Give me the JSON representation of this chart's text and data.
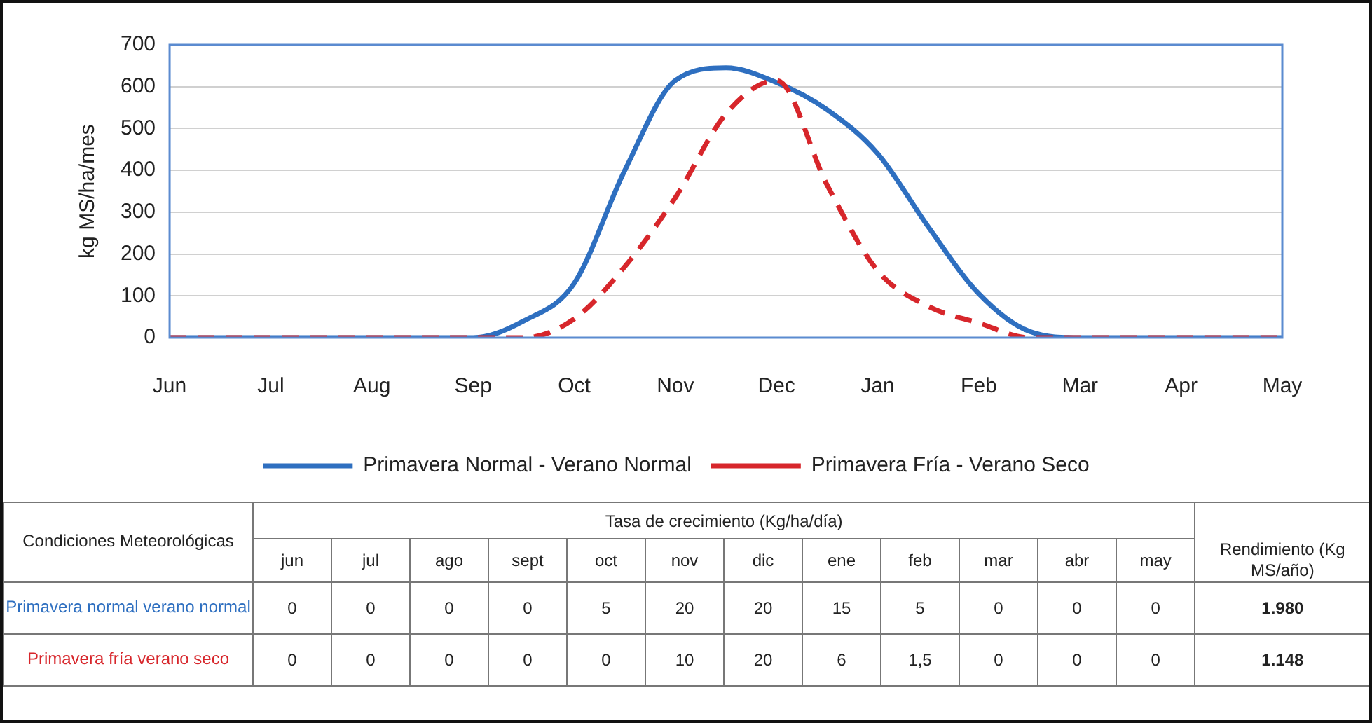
{
  "chart_data": [
    {
      "type": "line",
      "ylabel": "kg MS/ha/mes",
      "ylim": [
        0,
        700
      ],
      "categories": [
        "Jun",
        null,
        "Jul",
        null,
        "Aug",
        null,
        "Sep",
        null,
        "Oct",
        null,
        "Nov",
        null,
        "Dec",
        null,
        "Jan",
        null,
        "Feb",
        null,
        "Mar",
        null,
        "Apr",
        null,
        "May"
      ],
      "yticks": [
        0,
        100,
        200,
        300,
        400,
        500,
        600,
        700
      ],
      "grid": "y",
      "legend": "bottom",
      "marker": "none",
      "series": [
        {
          "name": "Primavera Normal - Verano Normal",
          "color": "#2e6fc0",
          "line_style": "solid",
          "values": [
            0,
            0,
            0,
            0,
            0,
            0,
            0,
            40,
            130,
            400,
            615,
            645,
            610,
            545,
            440,
            265,
            105,
            15,
            0,
            0,
            0,
            0,
            0
          ]
        },
        {
          "name": "Primavera Fría - Verano Seco",
          "color": "#d7262b",
          "line_style": "dashed",
          "values": [
            0,
            0,
            0,
            0,
            0,
            0,
            0,
            0,
            45,
            170,
            335,
            535,
            615,
            365,
            160,
            75,
            35,
            0,
            0,
            0,
            0,
            0,
            0
          ]
        }
      ]
    },
    {
      "type": "heatmap",
      "xlabel": "Tasa de crecimiento (Kg/ha/día)",
      "ylabel": "Condiciones Meteorológicas",
      "data_labels": true,
      "categories": [
        "jun",
        "jul",
        "ago",
        "sept",
        "oct",
        "nov",
        "dic",
        "ene",
        "feb",
        "mar",
        "abr",
        "may",
        "Rendimiento (Kg MS/año)"
      ],
      "y_categories": [
        "Primavera normal verano normal",
        "Primavera fría verano seco"
      ],
      "cells": [
        [
          0,
          0,
          0,
          0,
          5,
          20,
          20,
          15,
          5,
          0,
          0,
          0,
          1980
        ],
        [
          0,
          0,
          0,
          0,
          0,
          10,
          20,
          6,
          1.5,
          0,
          0,
          0,
          1148
        ]
      ],
      "cell_labels": [
        [
          "0",
          "0",
          "0",
          "0",
          "5",
          "20",
          "20",
          "15",
          "5",
          "0",
          "0",
          "0",
          "1.980"
        ],
        [
          "0",
          "0",
          "0",
          "0",
          "0",
          "10",
          "20",
          "6",
          "1,5",
          "0",
          "0",
          "0",
          "1.148"
        ]
      ]
    }
  ]
}
